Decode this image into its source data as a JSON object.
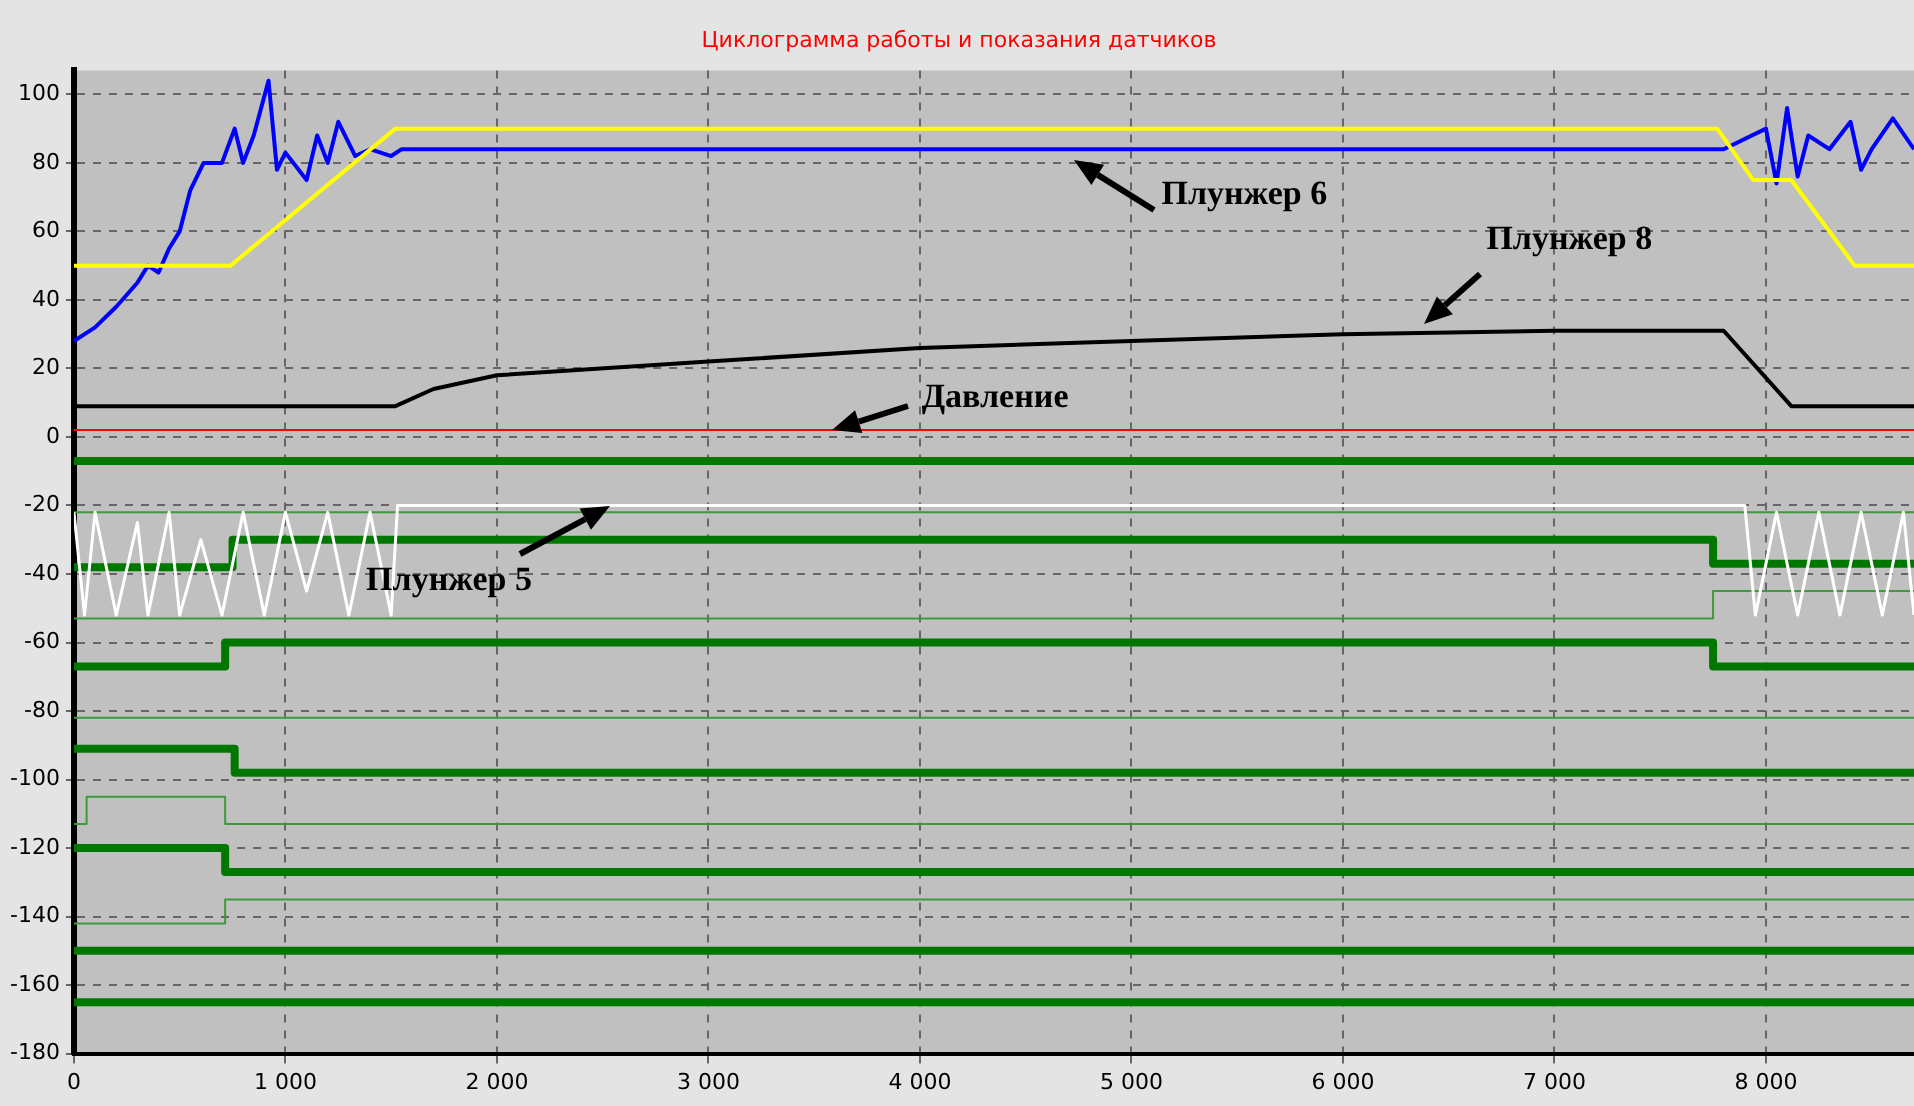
{
  "chart_data": {
    "type": "line",
    "title": "Циклограмма работы и показания датчиков",
    "xlim": [
      0,
      8700
    ],
    "xticks": [
      0,
      {
        "value": 1000,
        "label": "1 000"
      },
      {
        "value": 2000,
        "label": "2 000"
      },
      {
        "value": 3000,
        "label": "3 000"
      },
      {
        "value": 4000,
        "label": "4 000"
      },
      {
        "value": 5000,
        "label": "5 000"
      },
      {
        "value": 6000,
        "label": "6 000"
      },
      {
        "value": 7000,
        "label": "7 000"
      },
      {
        "value": 8000,
        "label": "8 000"
      }
    ],
    "ylim": [
      -180,
      107
    ],
    "yticks": [
      -180,
      -160,
      -140,
      -120,
      -100,
      -80,
      -60,
      -40,
      -20,
      0,
      20,
      40,
      60,
      80,
      100
    ],
    "grid": true,
    "legend": false,
    "marker": "none",
    "line_style": "solid",
    "series": [
      {
        "color": "#ffffff",
        "x": [
          0,
          50,
          100,
          200,
          300,
          350,
          450,
          500,
          600,
          700,
          800,
          900,
          1000,
          1100,
          1200,
          1300,
          1400,
          1500,
          1530,
          7900,
          7950,
          8050,
          8150,
          8250,
          8350,
          8450,
          8550,
          8650,
          8700
        ],
        "values": [
          -22,
          -52,
          -22,
          -52,
          -25,
          -52,
          -22,
          -52,
          -30,
          -52,
          -22,
          -52,
          -22,
          -45,
          -22,
          -52,
          -22,
          -52,
          -20,
          -20,
          -52,
          -22,
          -52,
          -22,
          -52,
          -22,
          -52,
          -22,
          -52
        ]
      },
      {
        "color": "#ffff00",
        "x": [
          0,
          740,
          1520,
          7770,
          7940,
          8120,
          8420,
          8700
        ],
        "values": [
          50,
          50,
          90,
          90,
          75,
          75,
          50,
          50
        ]
      },
      {
        "color": "#0000ff",
        "x": [
          0,
          100,
          200,
          300,
          350,
          400,
          450,
          500,
          550,
          613,
          700,
          760,
          800,
          850,
          920,
          960,
          1000,
          1100,
          1150,
          1200,
          1250,
          1330,
          1400,
          1500,
          1550,
          2000,
          3000,
          4000,
          5000,
          6000,
          7000,
          7800,
          8000,
          8050,
          8100,
          8150,
          8200,
          8300,
          8400,
          8450,
          8500,
          8600,
          8700
        ],
        "values": [
          28,
          32,
          38,
          45,
          50,
          48,
          55,
          60,
          72,
          80,
          80,
          90,
          80,
          88,
          104,
          78,
          83,
          75,
          88,
          80,
          92,
          82,
          84,
          82,
          84,
          84,
          84,
          84,
          84,
          84,
          84,
          84,
          90,
          74,
          96,
          76,
          88,
          84,
          92,
          78,
          84,
          93,
          84
        ]
      },
      {
        "color": "#000000",
        "x": [
          0,
          1520,
          1700,
          2000,
          3000,
          4000,
          5000,
          6000,
          7000,
          7800,
          8120,
          8700
        ],
        "values": [
          9,
          9,
          14,
          18,
          22,
          26,
          28,
          30,
          31,
          31,
          9,
          9
        ]
      },
      {
        "color": "#ff0000",
        "x": [
          0,
          8700
        ],
        "values": [
          2,
          2
        ]
      },
      {
        "color": "#007800",
        "x": [
          0,
          8700
        ],
        "values": [
          -7,
          -7
        ]
      },
      {
        "color": "#3c9a3c",
        "x": [
          0,
          8700
        ],
        "values": [
          -22,
          -22
        ]
      },
      {
        "color": "#007800",
        "x": [
          0,
          750,
          750,
          7750,
          7750,
          8700
        ],
        "values": [
          -38,
          -38,
          -30,
          -30,
          -37,
          -37
        ]
      },
      {
        "color": "#3c9a3c",
        "x": [
          0,
          7750,
          7750,
          8700
        ],
        "values": [
          -53,
          -53,
          -45,
          -45
        ]
      },
      {
        "color": "#007800",
        "x": [
          0,
          715,
          715,
          7750,
          7750,
          8700
        ],
        "values": [
          -67,
          -67,
          -60,
          -60,
          -67,
          -67
        ]
      },
      {
        "color": "#3c9a3c",
        "x": [
          0,
          8700
        ],
        "values": [
          -82,
          -82
        ]
      },
      {
        "color": "#007800",
        "x": [
          0,
          760,
          760,
          8700
        ],
        "values": [
          -91,
          -91,
          -98,
          -98
        ]
      },
      {
        "color": "#3c9a3c",
        "x": [
          0,
          60,
          60,
          715,
          715,
          8700
        ],
        "values": [
          -113,
          -113,
          -105,
          -105,
          -113,
          -113
        ]
      },
      {
        "color": "#007800",
        "x": [
          0,
          715,
          715,
          8700
        ],
        "values": [
          -120,
          -120,
          -127,
          -127
        ]
      },
      {
        "color": "#3c9a3c",
        "x": [
          0,
          715,
          715,
          8700
        ],
        "values": [
          -142,
          -142,
          -135,
          -135
        ]
      },
      {
        "color": "#007800",
        "x": [
          0,
          8700
        ],
        "values": [
          -150,
          -150
        ]
      },
      {
        "color": "#007800",
        "x": [
          0,
          8700
        ],
        "values": [
          -165,
          -165
        ]
      }
    ],
    "annotations": [
      {
        "text": "Плунжер 6",
        "x": 4730,
        "y": 81
      },
      {
        "text": "Плунжер 8",
        "x": 6380,
        "y": 33
      },
      {
        "text": "Давление",
        "x": 3580,
        "y": 2
      },
      {
        "text": "Плунжер 5",
        "x": 2530,
        "y": -20
      }
    ]
  }
}
